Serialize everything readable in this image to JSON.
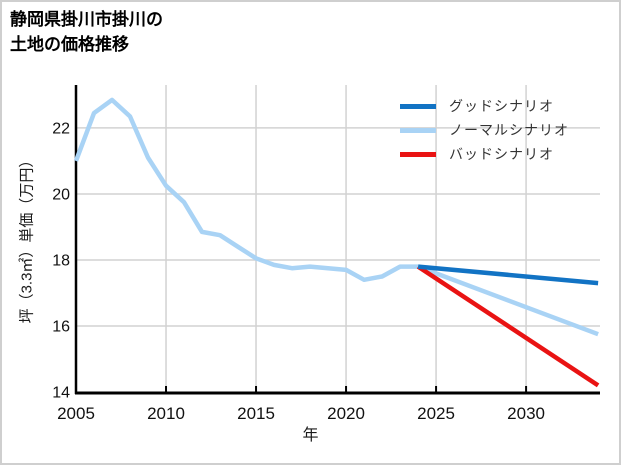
{
  "title": {
    "line1": "静岡県掛川市掛川の",
    "line2": "土地の価格推移"
  },
  "legend": {
    "items": [
      {
        "id": "good-scenario",
        "label": "グッドシナリオ",
        "color": "#1273c4"
      },
      {
        "id": "normal-scenario",
        "label": "ノーマルシナリオ",
        "color": "#a9d3f5"
      },
      {
        "id": "bad-scenario",
        "label": "バッドシナリオ",
        "color": "#e91313"
      }
    ]
  },
  "chart_data": {
    "type": "line",
    "title": "静岡県掛川市掛川の土地の価格推移",
    "xlabel": "年",
    "ylabel": "坪（3.3㎡）単価（万円）",
    "xlim": [
      2005,
      2034.05
    ],
    "ylim": [
      13.97,
      23.3
    ],
    "grid": true,
    "legend_position": "top-right",
    "x_ticks": [
      2005,
      2010,
      2015,
      2020,
      2025,
      2030
    ],
    "x_tick_labels": [
      "2005",
      "2010",
      "2015",
      "2020",
      "2025",
      "2030"
    ],
    "y_ticks": [
      14,
      16,
      18,
      20,
      22
    ],
    "y_tick_labels": [
      "14",
      "16",
      "18",
      "20",
      "22"
    ],
    "colors": {
      "grid": "#d2d2d2",
      "axis": "#000000",
      "tick_label": "#111111",
      "historical": "#a9d3f5"
    },
    "series": [
      {
        "id": "historical",
        "label": "",
        "color": "#a9d3f5",
        "x": [
          2005,
          2006,
          2007,
          2008,
          2009,
          2010,
          2011,
          2012,
          2013,
          2014,
          2015,
          2016,
          2017,
          2018,
          2019,
          2020,
          2021,
          2022,
          2023,
          2024
        ],
        "values": [
          21.0,
          22.45,
          22.85,
          22.35,
          21.1,
          20.25,
          19.75,
          18.85,
          18.75,
          18.4,
          18.05,
          17.85,
          17.75,
          17.8,
          17.75,
          17.7,
          17.4,
          17.5,
          17.8,
          17.8
        ]
      },
      {
        "id": "normal-scenario",
        "label": "ノーマルシナリオ",
        "color": "#a9d3f5",
        "x": [
          2024,
          2034
        ],
        "values": [
          17.8,
          15.75
        ]
      },
      {
        "id": "bad-scenario",
        "label": "バッドシナリオ",
        "color": "#e91313",
        "x": [
          2024,
          2034
        ],
        "values": [
          17.8,
          14.2
        ]
      },
      {
        "id": "good-scenario",
        "label": "グッドシナリオ",
        "color": "#1273c4",
        "x": [
          2024,
          2034
        ],
        "values": [
          17.8,
          17.3
        ]
      }
    ]
  }
}
